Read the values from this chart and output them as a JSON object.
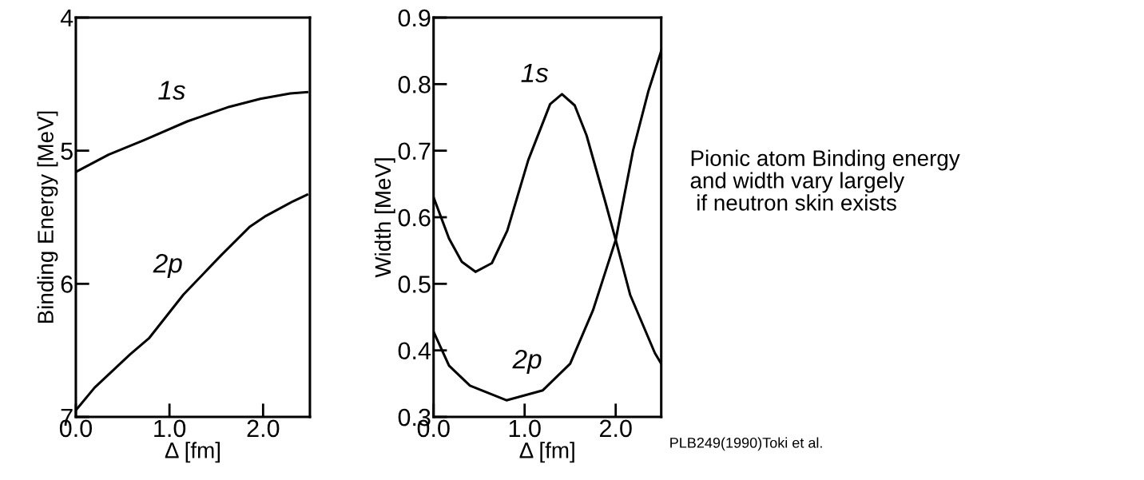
{
  "chart_data": [
    {
      "type": "line",
      "xlabel": "Δ [fm]",
      "ylabel": "Binding Energy [MeV]",
      "xlim": [
        0,
        2.5
      ],
      "ylim": [
        7,
        4
      ],
      "xticks": [
        {
          "value": 0,
          "label": "0.0"
        },
        {
          "value": 1,
          "label": "1.0"
        },
        {
          "value": 2,
          "label": "2.0"
        }
      ],
      "yticks": [
        4,
        5,
        6,
        7
      ],
      "grid": false,
      "marker": "none",
      "line_style": "solid",
      "series": [
        {
          "name": "1s",
          "color": "#000000",
          "x": [
            0,
            0.35,
            0.73,
            1.19,
            1.64,
            1.97,
            2.29,
            2.47
          ],
          "values": [
            5.16,
            5.03,
            4.92,
            4.78,
            4.67,
            4.61,
            4.57,
            4.56
          ]
        },
        {
          "name": "2p",
          "color": "#000000",
          "x": [
            0,
            0.2,
            0.58,
            0.78,
            1.15,
            1.56,
            1.86,
            2.03,
            2.32,
            2.47
          ],
          "values": [
            6.95,
            6.78,
            6.53,
            6.41,
            6.08,
            5.78,
            5.57,
            5.49,
            5.38,
            5.33
          ]
        }
      ]
    },
    {
      "type": "line",
      "xlabel": "Δ [fm]",
      "ylabel": "Width [MeV]",
      "xlim": [
        0,
        2.5
      ],
      "ylim": [
        0.3,
        0.9
      ],
      "xticks": [
        {
          "value": 0,
          "label": "0.0"
        },
        {
          "value": 1,
          "label": "1.0"
        },
        {
          "value": 2,
          "label": "2.0"
        }
      ],
      "yticks": [
        0.3,
        0.4,
        0.5,
        0.6,
        0.7,
        0.8,
        0.9
      ],
      "grid": false,
      "marker": "none",
      "line_style": "solid",
      "series": [
        {
          "name": "1s",
          "color": "#000000",
          "x": [
            0,
            0.17,
            0.31,
            0.46,
            0.64,
            0.81,
            1.04,
            1.28,
            1.41,
            1.55,
            1.68,
            1.89,
            2.0,
            2.16,
            2.43,
            2.5
          ],
          "values": [
            0.63,
            0.568,
            0.533,
            0.518,
            0.531,
            0.58,
            0.686,
            0.77,
            0.785,
            0.768,
            0.723,
            0.621,
            0.566,
            0.483,
            0.396,
            0.38
          ]
        },
        {
          "name": "2p",
          "color": "#000000",
          "x": [
            0,
            0.17,
            0.4,
            0.8,
            1.2,
            1.5,
            1.75,
            2.0,
            2.19,
            2.36,
            2.5
          ],
          "values": [
            0.428,
            0.377,
            0.347,
            0.325,
            0.34,
            0.38,
            0.46,
            0.566,
            0.7,
            0.79,
            0.85
          ]
        }
      ],
      "annotations": [
        "Pionic atom Binding energy\nand width vary largely\n if neutron skin exists",
        "PLB249(1990)Toki et al."
      ]
    }
  ]
}
